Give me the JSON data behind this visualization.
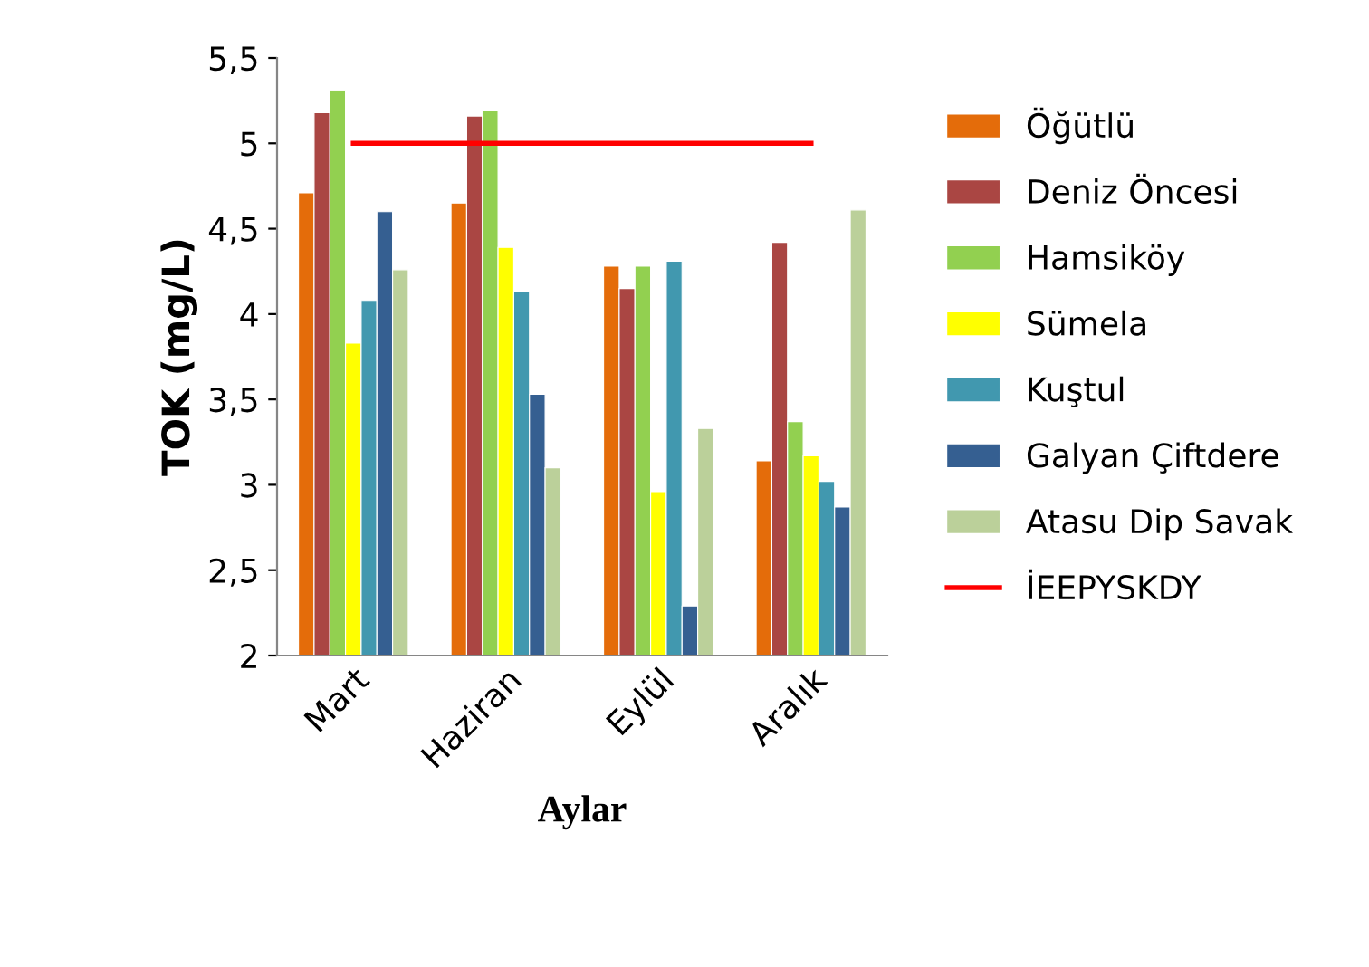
{
  "chart_data": {
    "type": "bar",
    "xlabel": "Aylar",
    "ylabel": "TOK (mg/L)",
    "categories": [
      "Mart",
      "Haziran",
      "Eylül",
      "Aralık"
    ],
    "series": [
      {
        "name": "Öğütlü",
        "color": "#e46c0a",
        "values": [
          4.71,
          4.65,
          4.28,
          3.14
        ]
      },
      {
        "name": "Deniz Öncesi",
        "color": "#aa4643",
        "values": [
          5.18,
          5.16,
          4.15,
          4.42
        ]
      },
      {
        "name": "Hamsiköy",
        "color": "#92d050",
        "values": [
          5.31,
          5.19,
          4.28,
          3.37
        ]
      },
      {
        "name": "Sümela",
        "color": "#ffff00",
        "values": [
          3.83,
          4.39,
          2.96,
          3.17
        ]
      },
      {
        "name": "Kuştul",
        "color": "#4198af",
        "values": [
          4.08,
          4.13,
          4.31,
          3.02
        ]
      },
      {
        "name": "Galyan Çiftdere",
        "color": "#355f91",
        "values": [
          4.6,
          3.53,
          2.29,
          2.87
        ]
      },
      {
        "name": "Atasu Dip Savak",
        "color": "#bbd09a",
        "values": [
          4.26,
          3.1,
          3.33,
          4.61
        ]
      },
      {
        "name": "İEEPYSKDY",
        "color": "#ff0000",
        "type": "line",
        "values": [
          5,
          5,
          5,
          5
        ]
      }
    ],
    "ylim": [
      2,
      5.5
    ],
    "yticks": [
      2,
      {
        "value": 2.5,
        "label": "2,5"
      },
      3,
      {
        "value": 3.5,
        "label": "3,5"
      },
      4,
      {
        "value": 4.5,
        "label": "4,5"
      },
      5,
      {
        "value": 5.5,
        "label": "5,5"
      }
    ],
    "grid": false,
    "legend": "right",
    "marker": "none",
    "line_style": "solid"
  }
}
